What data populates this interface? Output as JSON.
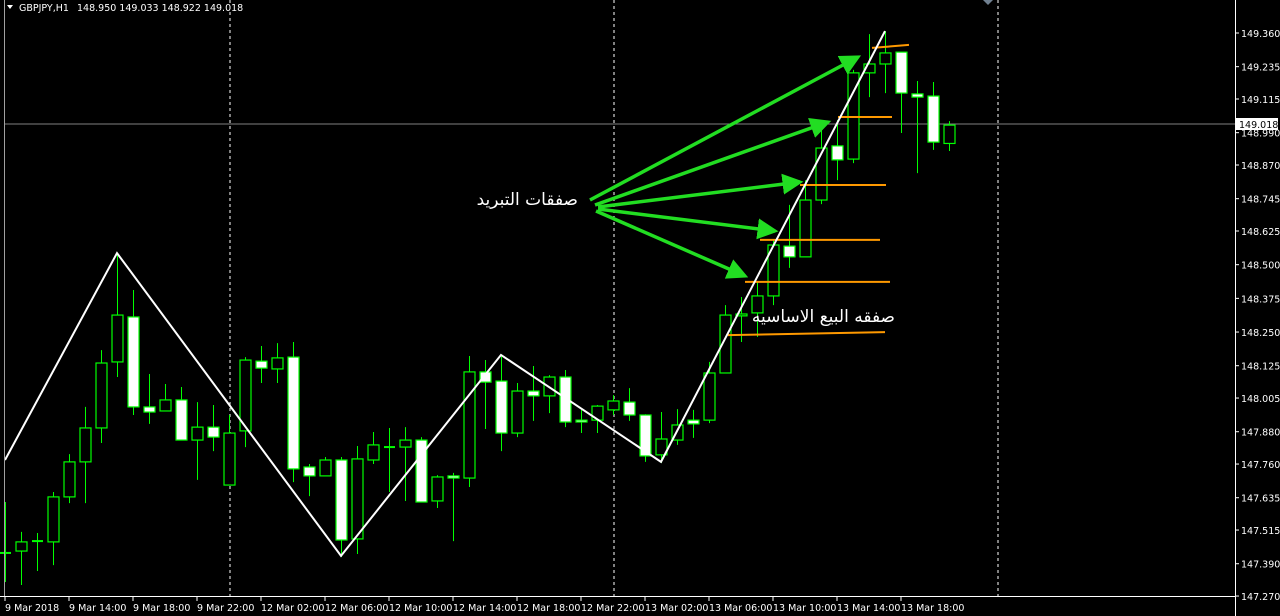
{
  "header": {
    "symbol": "GBPJPY,H1",
    "ohlc_text": "148.950 149.033 148.922 149.018"
  },
  "colors": {
    "background": "#000000",
    "candle_outline": "#00ff00",
    "bull_fill": "#000000",
    "bear_fill": "#ffffff",
    "zigzag": "#ffffff",
    "levels": "#ff9900",
    "arrows": "#22dd22",
    "grid_separator": "#ffffff",
    "bid_line": "#808080"
  },
  "annotations": {
    "hedge_trades": "صفقات التبريد",
    "main_sell_trade": "صفقه البيع الاساسيه"
  },
  "chart_data": {
    "type": "candlestick",
    "symbol": "GBPJPY",
    "timeframe": "H1",
    "ylim": [
      147.27,
      149.4
    ],
    "y_ticks": [
      "149.360",
      "149.235",
      "149.115",
      "148.990",
      "148.870",
      "148.745",
      "148.625",
      "148.500",
      "148.375",
      "148.250",
      "148.125",
      "148.005",
      "147.880",
      "147.760",
      "147.635",
      "147.515",
      "147.390",
      "147.270"
    ],
    "current_price": "149.018",
    "x_ticks": [
      "9 Mar 2018",
      "9 Mar 14:00",
      "9 Mar 18:00",
      "9 Mar 22:00",
      "12 Mar 02:00",
      "12 Mar 06:00",
      "12 Mar 10:00",
      "12 Mar 14:00",
      "12 Mar 18:00",
      "12 Mar 22:00",
      "13 Mar 02:00",
      "13 Mar 06:00",
      "13 Mar 10:00",
      "13 Mar 14:00",
      "13 Mar 18:00"
    ],
    "candles_ohlc": [
      [
        147.43,
        147.619,
        147.322,
        147.43
      ],
      [
        147.437,
        147.508,
        147.311,
        147.471
      ],
      [
        147.474,
        147.504,
        147.363,
        147.474
      ],
      [
        147.471,
        147.656,
        147.385,
        147.638
      ],
      [
        147.638,
        147.797,
        147.615,
        147.768
      ],
      [
        147.768,
        147.972,
        147.615,
        147.894
      ],
      [
        147.894,
        148.183,
        147.838,
        148.135
      ],
      [
        148.139,
        148.543,
        148.083,
        148.313
      ],
      [
        148.306,
        148.406,
        147.942,
        147.972
      ],
      [
        147.972,
        148.094,
        147.909,
        147.953
      ],
      [
        147.957,
        148.057,
        147.957,
        147.998
      ],
      [
        147.998,
        148.046,
        147.849,
        147.849
      ],
      [
        147.849,
        147.99,
        147.701,
        147.897
      ],
      [
        147.897,
        147.979,
        147.808,
        147.86
      ],
      [
        147.682,
        147.942,
        147.682,
        147.875
      ],
      [
        147.883,
        148.157,
        147.823,
        148.146
      ],
      [
        148.142,
        148.198,
        148.061,
        148.116
      ],
      [
        148.113,
        148.209,
        148.061,
        148.154
      ],
      [
        148.157,
        148.213,
        147.693,
        147.742
      ],
      [
        147.749,
        147.76,
        147.641,
        147.716
      ],
      [
        147.716,
        147.786,
        147.716,
        147.775
      ],
      [
        147.775,
        147.786,
        147.415,
        147.478
      ],
      [
        147.482,
        147.827,
        147.426,
        147.779
      ],
      [
        147.775,
        147.879,
        147.76,
        147.831
      ],
      [
        147.823,
        147.894,
        147.656,
        147.823
      ],
      [
        147.823,
        147.897,
        147.623,
        147.849
      ],
      [
        147.849,
        147.86,
        147.619,
        147.619
      ],
      [
        147.623,
        147.719,
        147.597,
        147.712
      ],
      [
        147.716,
        147.727,
        147.474,
        147.708
      ],
      [
        147.708,
        148.161,
        147.675,
        148.102
      ],
      [
        148.102,
        148.146,
        147.89,
        148.064
      ],
      [
        148.068,
        148.165,
        147.808,
        147.875
      ],
      [
        147.875,
        148.061,
        147.86,
        148.031
      ],
      [
        148.031,
        148.124,
        147.92,
        148.013
      ],
      [
        148.013,
        148.09,
        147.949,
        148.083
      ],
      [
        148.083,
        148.109,
        147.897,
        147.916
      ],
      [
        147.923,
        147.961,
        147.875,
        147.916
      ],
      [
        147.923,
        147.979,
        147.875,
        147.975
      ],
      [
        147.961,
        148.016,
        147.942,
        147.994
      ],
      [
        147.99,
        148.042,
        147.92,
        147.942
      ],
      [
        147.942,
        147.945,
        147.768,
        147.79
      ],
      [
        147.794,
        147.953,
        147.764,
        147.853
      ],
      [
        147.849,
        147.964,
        147.831,
        147.905
      ],
      [
        147.923,
        147.961,
        147.857,
        147.909
      ],
      [
        147.923,
        148.139,
        147.912,
        148.098
      ],
      [
        148.098,
        148.35,
        148.098,
        148.313
      ],
      [
        148.31,
        148.38,
        148.213,
        148.317
      ],
      [
        148.321,
        148.436,
        148.232,
        148.384
      ],
      [
        148.384,
        148.592,
        148.35,
        148.573
      ],
      [
        148.569,
        148.722,
        148.488,
        148.529
      ],
      [
        148.529,
        148.814,
        148.529,
        148.74
      ],
      [
        148.74,
        149.011,
        148.725,
        148.933
      ],
      [
        148.941,
        149.037,
        148.814,
        148.889
      ],
      [
        148.892,
        149.223,
        148.877,
        149.212
      ],
      [
        149.212,
        149.356,
        149.122,
        149.245
      ],
      [
        149.245,
        149.367,
        149.137,
        149.286
      ],
      [
        149.289,
        149.289,
        148.989,
        149.137
      ],
      [
        149.134,
        149.182,
        148.84,
        149.122
      ],
      [
        149.126,
        149.178,
        148.926,
        148.955
      ],
      [
        148.95,
        149.033,
        148.922,
        149.018
      ]
    ],
    "zigzag_prices": [
      147.775,
      148.543,
      147.419,
      148.165,
      147.768,
      149.367
    ],
    "order_levels": [
      148.246,
      148.436,
      148.592,
      148.796,
      149.048,
      149.312
    ]
  }
}
